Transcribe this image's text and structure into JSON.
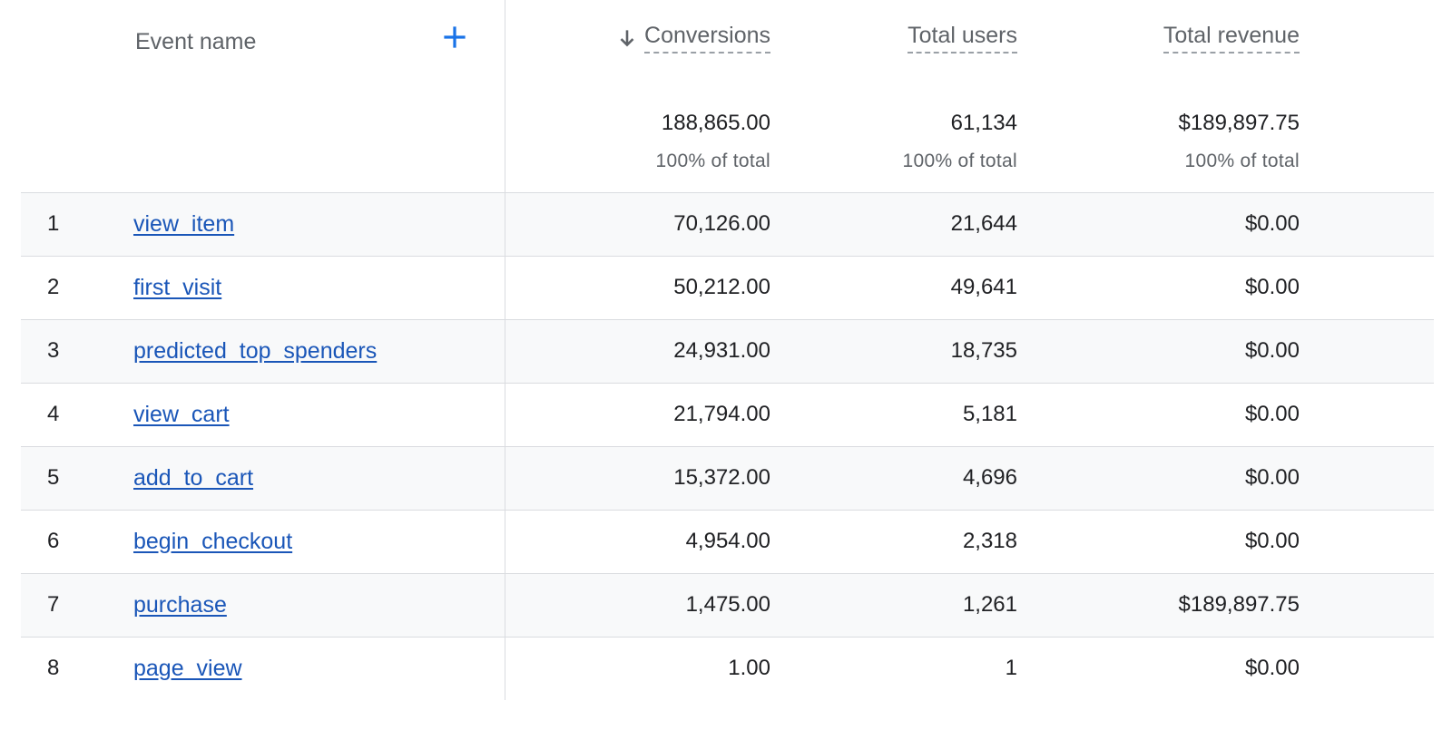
{
  "header": {
    "event_name": "Event name",
    "columns": {
      "conversions": "Conversions",
      "total_users": "Total users",
      "total_revenue": "Total revenue"
    },
    "sort_icon": "arrow-down-icon",
    "add_icon": "plus-icon"
  },
  "totals": {
    "conversions": "188,865.00",
    "total_users": "61,134",
    "total_revenue": "$189,897.75",
    "pct_label": "100% of total"
  },
  "colors": {
    "link": "#1a56b8",
    "add_button": "#1a73e8",
    "row_stripe": "#f8f9fa",
    "divider": "#dadce0"
  },
  "rows": [
    {
      "index": "1",
      "event": "view_item",
      "conversions": "70,126.00",
      "users": "21,644",
      "revenue": "$0.00"
    },
    {
      "index": "2",
      "event": "first_visit",
      "conversions": "50,212.00",
      "users": "49,641",
      "revenue": "$0.00"
    },
    {
      "index": "3",
      "event": "predicted_top_spenders",
      "conversions": "24,931.00",
      "users": "18,735",
      "revenue": "$0.00"
    },
    {
      "index": "4",
      "event": "view_cart",
      "conversions": "21,794.00",
      "users": "5,181",
      "revenue": "$0.00"
    },
    {
      "index": "5",
      "event": "add_to_cart",
      "conversions": "15,372.00",
      "users": "4,696",
      "revenue": "$0.00"
    },
    {
      "index": "6",
      "event": "begin_checkout",
      "conversions": "4,954.00",
      "users": "2,318",
      "revenue": "$0.00"
    },
    {
      "index": "7",
      "event": "purchase",
      "conversions": "1,475.00",
      "users": "1,261",
      "revenue": "$189,897.75"
    },
    {
      "index": "8",
      "event": "page_view",
      "conversions": "1.00",
      "users": "1",
      "revenue": "$0.00"
    }
  ]
}
